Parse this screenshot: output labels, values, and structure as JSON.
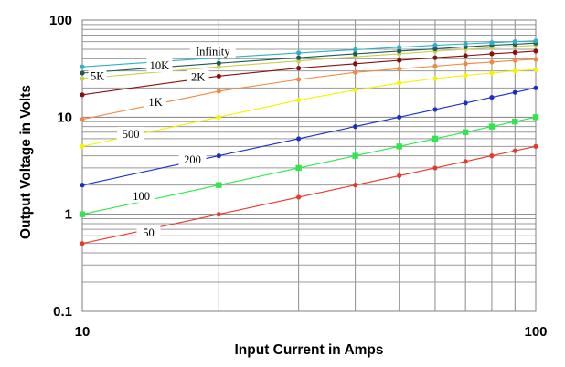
{
  "chart_data": {
    "type": "line",
    "xlabel": "Input Current in Amps",
    "ylabel": "Output Voltage in Volts",
    "x_scale": "log",
    "y_scale": "log",
    "xlim": [
      10,
      100
    ],
    "ylim": [
      0.1,
      100
    ],
    "x_tick_labels": [
      "10",
      "100"
    ],
    "y_tick_labels": [
      "0.1",
      "1",
      "10",
      "100"
    ],
    "grid": true,
    "x": [
      10,
      20,
      30,
      40,
      50,
      60,
      70,
      80,
      90,
      100
    ],
    "series": [
      {
        "name": "50",
        "color": "#e8392a",
        "marker": "circle",
        "values": [
          0.5,
          1.0,
          1.5,
          2.0,
          2.5,
          3.0,
          3.5,
          4.0,
          4.5,
          5.0
        ]
      },
      {
        "name": "100",
        "color": "#2ee84a",
        "marker": "square",
        "values": [
          1.0,
          2.0,
          3.0,
          4.0,
          5.0,
          6.0,
          7.0,
          8.0,
          9.0,
          10.0
        ]
      },
      {
        "name": "200",
        "color": "#1a2fc8",
        "marker": "circle",
        "values": [
          2.0,
          4.0,
          6.0,
          8.0,
          10.0,
          12.0,
          14.0,
          16.0,
          18.0,
          20.0
        ]
      },
      {
        "name": "500",
        "color": "#f4f400",
        "marker": "circle",
        "values": [
          5.0,
          10.0,
          15.0,
          19.0,
          22.5,
          25.0,
          27.0,
          28.5,
          30.0,
          31.0
        ]
      },
      {
        "name": "1K",
        "color": "#f08a40",
        "marker": "circle",
        "values": [
          9.5,
          18.5,
          24.5,
          29.0,
          31.5,
          33.5,
          35.5,
          37.0,
          38.5,
          39.5
        ]
      },
      {
        "name": "2K",
        "color": "#8a1010",
        "marker": "circle",
        "values": [
          17.0,
          26.5,
          32.0,
          35.5,
          38.5,
          41.0,
          43.0,
          45.0,
          46.5,
          48.0
        ]
      },
      {
        "name": "5K",
        "color": "#c8d24a",
        "marker": "circle",
        "values": [
          25.0,
          33.0,
          38.0,
          42.0,
          45.0,
          48.0,
          50.0,
          52.0,
          53.5,
          55.0
        ]
      },
      {
        "name": "10K",
        "color": "#1f5a5a",
        "marker": "circle",
        "values": [
          28.5,
          36.0,
          41.0,
          45.0,
          48.0,
          50.5,
          53.0,
          55.0,
          56.5,
          58.0
        ]
      },
      {
        "name": "Infinity",
        "color": "#30b0c8",
        "marker": "circle",
        "values": [
          33.0,
          41.0,
          46.0,
          49.5,
          52.5,
          55.0,
          57.0,
          58.5,
          60.0,
          61.0
        ]
      }
    ]
  }
}
